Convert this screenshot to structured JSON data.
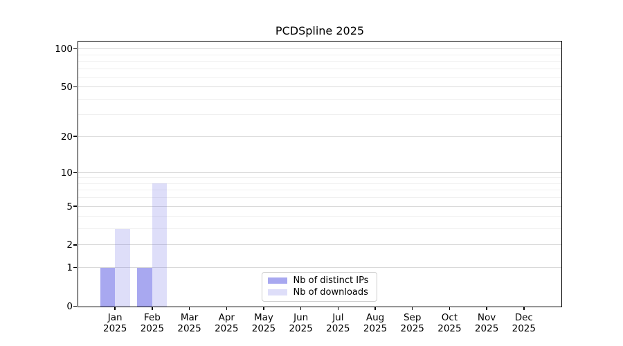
{
  "chart_data": {
    "type": "bar",
    "title": "PCDSpline 2025",
    "categories": [
      "Jan 2025",
      "Feb 2025",
      "Mar 2025",
      "Apr 2025",
      "May 2025",
      "Jun 2025",
      "Jul 2025",
      "Aug 2025",
      "Sep 2025",
      "Oct 2025",
      "Nov 2025",
      "Dec 2025"
    ],
    "series": [
      {
        "name": "Nb of distinct IPs",
        "color": "rgba(122,122,232,0.65)",
        "values": [
          1,
          1,
          0,
          0,
          0,
          0,
          0,
          0,
          0,
          0,
          0,
          0
        ]
      },
      {
        "name": "Nb of downloads",
        "color": "rgba(122,122,232,0.25)",
        "values": [
          3,
          8,
          0,
          0,
          0,
          0,
          0,
          0,
          0,
          0,
          0,
          0
        ]
      }
    ],
    "xlabel": "",
    "ylabel": "",
    "scale": "log1p",
    "ylim": [
      0,
      115
    ],
    "y_ticks": [
      0,
      1,
      2,
      5,
      10,
      20,
      50,
      100
    ],
    "y_minor_ticks": [
      3,
      4,
      6,
      7,
      8,
      9,
      30,
      40,
      60,
      70,
      80,
      90
    ],
    "grid": true,
    "legend_position": "inside-bottom-center"
  },
  "colors": {
    "bar_base": "#7a7ae8",
    "major_grid": "#d9d9d9",
    "minor_grid": "#f0f0f0",
    "axis": "#000000",
    "background": "#ffffff",
    "legend_border": "#cccccc"
  }
}
